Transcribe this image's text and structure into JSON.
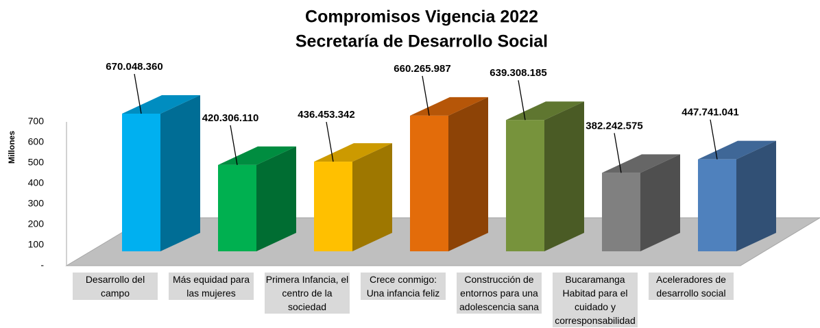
{
  "chart_data": {
    "type": "bar3d",
    "title": "Compromisos Vigencia 2022",
    "subtitle": "Secretaría de Desarrollo Social",
    "y_label": "Millones",
    "categories": [
      "Desarrollo del campo",
      "Más equidad para las mujeres",
      "Primera Infancia, el centro de la sociedad",
      "Crece conmigo: Una infancia feliz",
      "Construcción de entornos para una adolescencia sana",
      "Bucaramanga Habitad para el cuidado y corresponsabilidad",
      "Aceleradores de desarrollo social"
    ],
    "values": [
      670.04836,
      420.30611,
      436.453342,
      660.265987,
      639.308185,
      382.242575,
      447.741041
    ],
    "value_labels": [
      "670.048.360",
      "420.306.110",
      "436.453.342",
      "660.265.987",
      "639.308.185",
      "382.242.575",
      "447.741.041"
    ],
    "colors": [
      "#00b0f0",
      "#00b050",
      "#ffc000",
      "#e36c0a",
      "#77933c",
      "#808080",
      "#4f81bd"
    ],
    "ylim": [
      0,
      700
    ],
    "yticks": [
      {
        "value": 0,
        "label": "-"
      },
      100,
      200,
      300,
      400,
      500,
      600,
      700
    ]
  }
}
